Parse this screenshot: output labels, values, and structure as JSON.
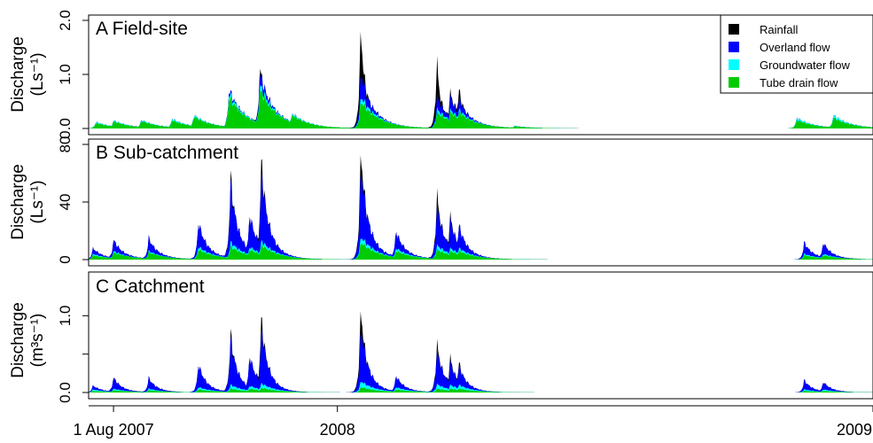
{
  "chart_data": {
    "type": "area",
    "stacked": true,
    "x_axis": {
      "range": [
        "2007-07-15",
        "2009-01-01"
      ],
      "ticks": [
        {
          "date": "2007-08-01",
          "label": "1 Aug 2007"
        },
        {
          "date": "2008-01-01",
          "label": "2008"
        },
        {
          "date": "2009-01-01",
          "label": "2009"
        }
      ]
    },
    "legend": {
      "placement": "top-right",
      "entries": [
        {
          "name": "Rainfall",
          "color": "#000000"
        },
        {
          "name": "Overland flow",
          "color": "#0000ff"
        },
        {
          "name": "Groundwater flow",
          "color": "#00ffff"
        },
        {
          "name": "Tube drain flow",
          "color": "#00cc00"
        }
      ]
    },
    "panels": [
      {
        "title": "A  Field-site",
        "ylabel_line1": "Discharge",
        "ylabel_line2": "(Ls⁻¹)",
        "ylim": [
          0,
          2.0
        ],
        "yticks": [
          0.0,
          1.0,
          2.0
        ],
        "ytick_labels": [
          "0.0",
          "1.0",
          "2.0"
        ],
        "events": [
          {
            "date": "2007-07-20",
            "tube": 0.1,
            "ground": 0.02,
            "over": 0.0,
            "rain": 0.0
          },
          {
            "date": "2007-08-01",
            "tube": 0.13,
            "ground": 0.02,
            "over": 0.0,
            "rain": 0.0
          },
          {
            "date": "2007-08-20",
            "tube": 0.14,
            "ground": 0.02,
            "over": 0.0,
            "rain": 0.0
          },
          {
            "date": "2007-09-10",
            "tube": 0.15,
            "ground": 0.03,
            "over": 0.0,
            "rain": 0.0
          },
          {
            "date": "2007-09-25",
            "tube": 0.22,
            "ground": 0.03,
            "over": 0.0,
            "rain": 0.0
          },
          {
            "date": "2007-10-19",
            "tube": 0.58,
            "ground": 0.08,
            "over": 0.06,
            "rain": 0.0
          },
          {
            "date": "2007-11-09",
            "tube": 0.72,
            "ground": 0.1,
            "over": 0.2,
            "rain": 0.12
          },
          {
            "date": "2007-12-01",
            "tube": 0.25,
            "ground": 0.03,
            "over": 0.0,
            "rain": 0.0
          },
          {
            "date": "2008-01-17",
            "tube": 0.5,
            "ground": 0.1,
            "over": 0.45,
            "rain": 0.9
          },
          {
            "date": "2008-01-26",
            "tube": 0.25,
            "ground": 0.04,
            "over": 0.02,
            "rain": 0.0
          },
          {
            "date": "2008-03-09",
            "tube": 0.3,
            "ground": 0.06,
            "over": 0.25,
            "rain": 0.7
          },
          {
            "date": "2008-03-18",
            "tube": 0.3,
            "ground": 0.05,
            "over": 0.25,
            "rain": 0.1
          },
          {
            "date": "2008-03-24",
            "tube": 0.3,
            "ground": 0.05,
            "over": 0.2,
            "rain": 0.2
          },
          {
            "date": "2008-05-01",
            "tube": 0.04,
            "ground": 0.01,
            "over": 0.0,
            "rain": 0.0
          },
          {
            "date": "2008-11-10",
            "tube": 0.16,
            "ground": 0.04,
            "over": 0.0,
            "rain": 0.0
          },
          {
            "date": "2008-12-05",
            "tube": 0.2,
            "ground": 0.05,
            "over": 0.0,
            "rain": 0.0
          }
        ]
      },
      {
        "title": "B  Sub-catchment",
        "ylabel_line1": "Discharge",
        "ylabel_line2": "(Ls⁻¹)",
        "ylim": [
          0,
          80
        ],
        "yticks": [
          0,
          40,
          80
        ],
        "ytick_labels": [
          "0",
          "40",
          "80"
        ],
        "events": [
          {
            "date": "2007-07-18",
            "tube": 3,
            "ground": 1,
            "over": 4,
            "rain": 0
          },
          {
            "date": "2007-08-01",
            "tube": 5,
            "ground": 1,
            "over": 8,
            "rain": 0
          },
          {
            "date": "2007-08-25",
            "tube": 5,
            "ground": 1,
            "over": 9,
            "rain": 0
          },
          {
            "date": "2007-09-28",
            "tube": 7,
            "ground": 2,
            "over": 17,
            "rain": 0
          },
          {
            "date": "2007-10-20",
            "tube": 9,
            "ground": 3,
            "over": 40,
            "rain": 6
          },
          {
            "date": "2007-11-02",
            "tube": 7,
            "ground": 2,
            "over": 23,
            "rain": 0
          },
          {
            "date": "2007-11-10",
            "tube": 10,
            "ground": 3,
            "over": 47,
            "rain": 12
          },
          {
            "date": "2008-01-17",
            "tube": 12,
            "ground": 4,
            "over": 48,
            "rain": 15
          },
          {
            "date": "2008-02-10",
            "tube": 6,
            "ground": 2,
            "over": 12,
            "rain": 0
          },
          {
            "date": "2008-03-09",
            "tube": 7,
            "ground": 3,
            "over": 28,
            "rain": 9
          },
          {
            "date": "2008-03-18",
            "tube": 6,
            "ground": 2,
            "over": 20,
            "rain": 4
          },
          {
            "date": "2008-03-24",
            "tube": 6,
            "ground": 2,
            "over": 16,
            "rain": 0
          },
          {
            "date": "2008-11-15",
            "tube": 3,
            "ground": 1,
            "over": 8,
            "rain": 0
          },
          {
            "date": "2008-11-28",
            "tube": 3,
            "ground": 1,
            "over": 8,
            "rain": 0
          }
        ]
      },
      {
        "title": "C  Catchment",
        "ylabel_line1": "Discharge",
        "ylabel_line2": "(m³s⁻¹)",
        "ylim": [
          0,
          1.5
        ],
        "yticks": [
          0.0,
          0.5,
          1.0
        ],
        "ytick_labels": [
          "0.0",
          "",
          "1.0"
        ],
        "events": [
          {
            "date": "2007-07-18",
            "tube": 0.02,
            "ground": 0.02,
            "over": 0.05,
            "rain": 0.0
          },
          {
            "date": "2007-08-01",
            "tube": 0.03,
            "ground": 0.02,
            "over": 0.15,
            "rain": 0.0
          },
          {
            "date": "2007-08-25",
            "tube": 0.03,
            "ground": 0.02,
            "over": 0.14,
            "rain": 0.0
          },
          {
            "date": "2007-09-28",
            "tube": 0.04,
            "ground": 0.03,
            "over": 0.3,
            "rain": 0.0
          },
          {
            "date": "2007-10-20",
            "tube": 0.05,
            "ground": 0.05,
            "over": 0.58,
            "rain": 0.1
          },
          {
            "date": "2007-11-02",
            "tube": 0.05,
            "ground": 0.04,
            "over": 0.4,
            "rain": 0.0
          },
          {
            "date": "2007-11-10",
            "tube": 0.06,
            "ground": 0.06,
            "over": 0.7,
            "rain": 0.2
          },
          {
            "date": "2008-01-17",
            "tube": 0.07,
            "ground": 0.08,
            "over": 0.7,
            "rain": 0.3
          },
          {
            "date": "2008-02-10",
            "tube": 0.04,
            "ground": 0.03,
            "over": 0.15,
            "rain": 0.0
          },
          {
            "date": "2008-03-09",
            "tube": 0.05,
            "ground": 0.06,
            "over": 0.45,
            "rain": 0.1
          },
          {
            "date": "2008-03-18",
            "tube": 0.05,
            "ground": 0.05,
            "over": 0.3,
            "rain": 0.08
          },
          {
            "date": "2008-03-24",
            "tube": 0.05,
            "ground": 0.05,
            "over": 0.25,
            "rain": 0.05
          },
          {
            "date": "2008-11-15",
            "tube": 0.02,
            "ground": 0.02,
            "over": 0.12,
            "rain": 0.0
          },
          {
            "date": "2008-11-28",
            "tube": 0.02,
            "ground": 0.02,
            "over": 0.1,
            "rain": 0.0
          }
        ]
      }
    ]
  }
}
